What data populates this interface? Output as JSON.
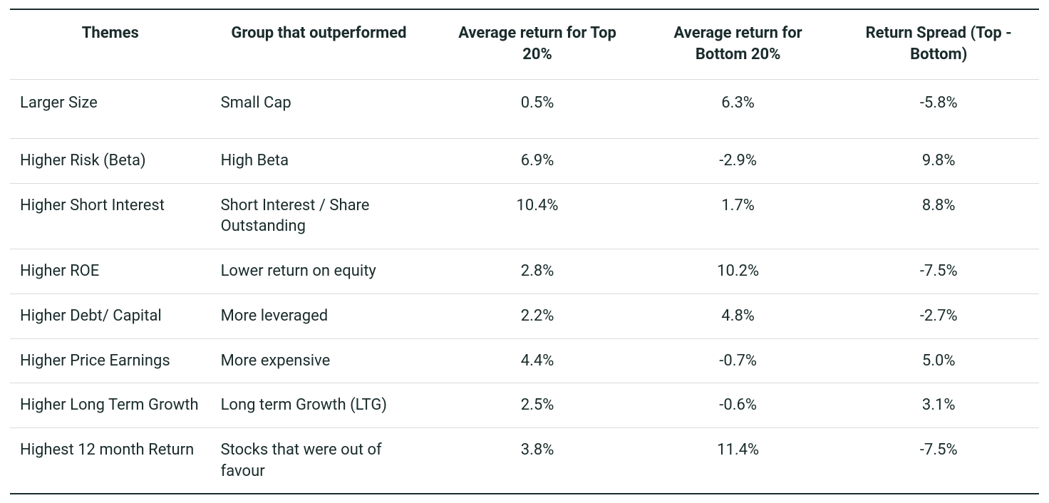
{
  "table": {
    "type": "table",
    "background_color": "#ffffff",
    "text_color": "#1a2b2b",
    "border_dark": "#1a2b2b",
    "border_light": "#d8dcdc",
    "header_fontsize_pt": 16,
    "body_fontsize_pt": 16,
    "header_fontweight": 700,
    "body_fontweight": 400,
    "columns": [
      {
        "key": "theme",
        "label": "Themes",
        "align": "left",
        "header_align": "center",
        "width_pct": 19.5
      },
      {
        "key": "group",
        "label": "Group that outperformed",
        "align": "left",
        "header_align": "center",
        "width_pct": 22.0
      },
      {
        "key": "top",
        "label": "Average return for Top 20%",
        "align": "center",
        "header_align": "center",
        "width_pct": 19.5
      },
      {
        "key": "bottom",
        "label": "Average return for Bottom 20%",
        "align": "center",
        "header_align": "center",
        "width_pct": 19.5
      },
      {
        "key": "spread",
        "label": "Return Spread (Top - Bottom)",
        "align": "center",
        "header_align": "center",
        "width_pct": 19.5
      }
    ],
    "rows": [
      {
        "theme": "Larger Size",
        "group": "Small Cap",
        "top": "0.5%",
        "bottom": "6.3%",
        "spread": "-5.8%"
      },
      {
        "theme": "Higher Risk (Beta)",
        "group": "High Beta",
        "top": "6.9%",
        "bottom": "-2.9%",
        "spread": "9.8%"
      },
      {
        "theme": "Higher Short Interest",
        "group": "Short Interest / Share Outstanding",
        "top": "10.4%",
        "bottom": "1.7%",
        "spread": "8.8%"
      },
      {
        "theme": "Higher ROE",
        "group": "Lower return on equity",
        "top": "2.8%",
        "bottom": "10.2%",
        "spread": "-7.5%"
      },
      {
        "theme": "Higher Debt/ Capital",
        "group": "More leveraged",
        "top": "2.2%",
        "bottom": "4.8%",
        "spread": "-2.7%"
      },
      {
        "theme": "Higher Price Earnings",
        "group": "More expensive",
        "top": "4.4%",
        "bottom": "-0.7%",
        "spread": "5.0%"
      },
      {
        "theme": "Higher Long Term Growth",
        "group": "Long term Growth (LTG)",
        "top": "2.5%",
        "bottom": "-0.6%",
        "spread": "3.1%"
      },
      {
        "theme": "Highest 12 month Return",
        "group": "Stocks that were out of favour",
        "top": "3.8%",
        "bottom": "11.4%",
        "spread": "-7.5%"
      }
    ]
  }
}
